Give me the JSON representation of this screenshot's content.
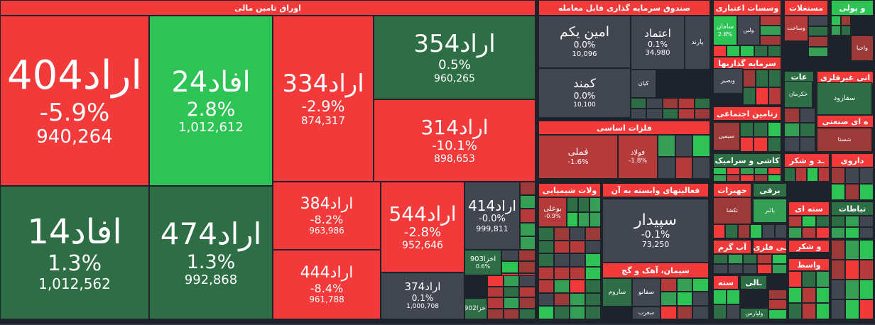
{
  "colors": {
    "red": "#f23a3a",
    "dark_red": "#9c3a3a",
    "mid_red": "#b53b3b",
    "green": "#2ec455",
    "dark_green": "#2e6e45",
    "mid_green": "#35a055",
    "neutral": "#424650",
    "background": "#1d222b"
  },
  "chart_data": {
    "type": "heatmap",
    "title": "",
    "sectors": [
      {
        "name": "اوراق تامین مالی",
        "color": "red"
      },
      {
        "name": "صندوق سرمایه گذاری قابل معامله",
        "color": "red"
      },
      {
        "name": "فلزات اساسی",
        "color": "red"
      },
      {
        "name": "محصولات شیمیایی",
        "label": "ولات شیمیایی",
        "color": "red"
      },
      {
        "name": "فعالیتهای وابسته به آن",
        "label": "فعالیتهای وابسته به آن",
        "color": "red"
      },
      {
        "name": "سیمان، آهک و گچ",
        "color": "red"
      },
      {
        "name": "موسسات اعتباری",
        "label": "وسسات اعتباری",
        "color": "red"
      },
      {
        "name": "مستغلات",
        "label": "مستغلات",
        "color": "red"
      },
      {
        "name": "و پولی",
        "color": "green"
      },
      {
        "name": "سرمایه گذاریها",
        "color": "red"
      },
      {
        "name": "عات",
        "color": "dark_green"
      },
      {
        "name": "انی غیرفلزی",
        "color": "red"
      },
      {
        "name": "زتامین اجتماعی",
        "color": "red"
      },
      {
        "name": "ه ای صنعتی",
        "color": "red"
      },
      {
        "name": "کاشی و سرامیک",
        "color": "dark_green"
      },
      {
        "name": "ـد و شکر",
        "color": "red"
      },
      {
        "name": "داروی",
        "color": "red"
      },
      {
        "name": "جهیزات",
        "color": "red"
      },
      {
        "name": "برقی",
        "color": "dark_green"
      },
      {
        "name": "سته ای",
        "color": "red"
      },
      {
        "name": "تباطات",
        "color": "dark_green"
      },
      {
        "name": "آب گرم",
        "color": "red"
      },
      {
        "name": "ـی فلزی",
        "color": "red"
      },
      {
        "name": "و شکر",
        "color": "red"
      },
      {
        "name": "واسط",
        "color": "red"
      },
      {
        "name": "سته",
        "color": "red"
      },
      {
        "name": "ـالی",
        "color": "dark_green"
      }
    ],
    "items": [
      {
        "name": "اراد404",
        "change": -5.9,
        "change_label": "-5.9%",
        "value": 940264,
        "value_label": "940,264",
        "color": "red"
      },
      {
        "name": "افاد24",
        "change": 2.8,
        "change_label": "2.8%",
        "value": 1012612,
        "value_label": "1,012,612",
        "color": "green"
      },
      {
        "name": "اراد334",
        "change": -2.9,
        "change_label": "-2.9%",
        "value": 874317,
        "value_label": "874,317",
        "color": "red"
      },
      {
        "name": "اراد354",
        "change": 0.5,
        "change_label": "0.5%",
        "value": 960265,
        "value_label": "960,265",
        "color": "dark_green"
      },
      {
        "name": "اراد314",
        "change": -10.1,
        "change_label": "-10.1%",
        "value": 898653,
        "value_label": "898,653",
        "color": "red"
      },
      {
        "name": "افاد14",
        "change": 1.3,
        "change_label": "1.3%",
        "value": 1012562,
        "value_label": "1,012,562",
        "color": "dark_green"
      },
      {
        "name": "اراد474",
        "change": 1.3,
        "change_label": "1.3%",
        "value": 992868,
        "value_label": "992,868",
        "color": "dark_green"
      },
      {
        "name": "اراد384",
        "change": -8.2,
        "change_label": "-8.2%",
        "value": 963986,
        "value_label": "963,986",
        "color": "red"
      },
      {
        "name": "اراد444",
        "change": -8.4,
        "change_label": "-8.4%",
        "value": 961788,
        "value_label": "961,788",
        "color": "red"
      },
      {
        "name": "اراد544",
        "change": -2.8,
        "change_label": "-2.8%",
        "value": 952646,
        "value_label": "952,646",
        "color": "red"
      },
      {
        "name": "اراد414",
        "change": -0.0,
        "change_label": "-0.0%",
        "value": 999811,
        "value_label": "999,811",
        "color": "neutral"
      },
      {
        "name": "اراد374",
        "change": 0.1,
        "change_label": "0.1%",
        "value": 1000708,
        "value_label": "1,000,708",
        "color": "neutral"
      },
      {
        "name": "اخزا903",
        "change": 0.6,
        "change_label": "0.6%",
        "color": "dark_green"
      },
      {
        "name": "اخزا902",
        "color": "dark_green"
      },
      {
        "name": "امین یکم",
        "change": 0.0,
        "change_label": "0.0%",
        "value": 10096,
        "value_label": "10,096",
        "color": "neutral"
      },
      {
        "name": "اعتماد",
        "change": 0.1,
        "change_label": "0.1%",
        "value": 34980,
        "value_label": "34,980",
        "color": "neutral"
      },
      {
        "name": "پارند",
        "color": "neutral"
      },
      {
        "name": "کمند",
        "change": 0.0,
        "change_label": "0.0%",
        "value": 10100,
        "value_label": "10,100",
        "color": "neutral"
      },
      {
        "name": "کیان",
        "color": "neutral"
      },
      {
        "name": "فملی",
        "change": -1.6,
        "change_label": "-1.6%",
        "color": "mid_red"
      },
      {
        "name": "فولاد",
        "change": -1.8,
        "change_label": "-1.8%",
        "color": "mid_red"
      },
      {
        "name": "بوعلی",
        "change": -0.9,
        "change_label": "-0.9%",
        "color": "mid_red"
      },
      {
        "name": "سپیدار",
        "change": -0.1,
        "change_label": "-0.1%",
        "value": 73250,
        "value_label": "73,250",
        "color": "neutral"
      },
      {
        "name": "ساروم",
        "color": "dark_green"
      },
      {
        "name": "سفانو",
        "color": "neutral"
      },
      {
        "name": "سغرب",
        "color": "neutral"
      },
      {
        "name": "سامان",
        "change": 2.8,
        "change_label": "2.8%",
        "color": "green"
      },
      {
        "name": "ولبن",
        "color": "neutral"
      },
      {
        "name": "وساخت",
        "color": "mid_red"
      },
      {
        "name": "واحیا",
        "color": "dark_red"
      },
      {
        "name": "وبصیر",
        "color": "neutral"
      },
      {
        "name": "خکرمان",
        "color": "dark_green"
      },
      {
        "name": "سفارود",
        "color": "dark_green"
      },
      {
        "name": "سیمین",
        "color": "dark_red"
      },
      {
        "name": "شستا",
        "color": "dark_red"
      },
      {
        "name": "تکشا",
        "color": "dark_red"
      },
      {
        "name": "بالبر",
        "color": "mid_green"
      },
      {
        "name": "ولپارس",
        "color": "dark_green"
      }
    ]
  }
}
